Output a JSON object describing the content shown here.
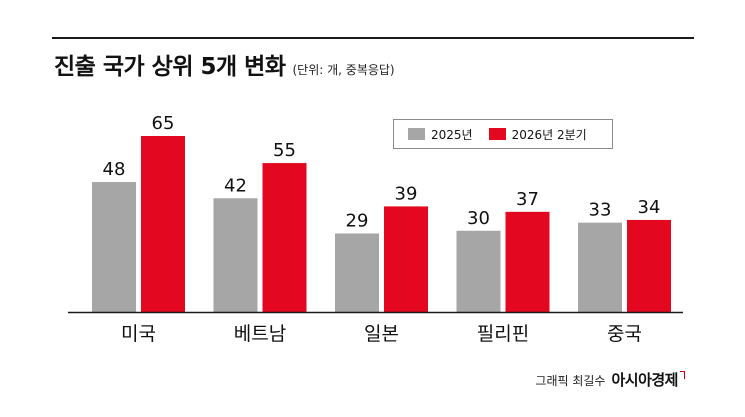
{
  "header": {
    "title": "진출 국가 상위 5개 변화",
    "unit": "(단위: 개, 중복응답)"
  },
  "footer": {
    "credit": "그래픽 최길수",
    "brand": "아시아경제"
  },
  "colors": {
    "series_2025": "#a6a6a6",
    "series_2026": "#e3071f",
    "axis": "#1a1a1a",
    "label_text": "#111111"
  },
  "chart_data": {
    "type": "bar",
    "title": "진출 국가 상위 5개 변화",
    "unit": "(단위: 개, 중복응답)",
    "categories": [
      "미국",
      "베트남",
      "일본",
      "필리핀",
      "중국"
    ],
    "series": [
      {
        "name": "2025년",
        "values": [
          48,
          42,
          29,
          30,
          33
        ]
      },
      {
        "name": "2026년 2분기",
        "values": [
          65,
          55,
          39,
          37,
          34
        ]
      }
    ],
    "ylim": [
      0,
      65
    ],
    "grid": false,
    "legend": "top-right",
    "data_labels": true
  }
}
